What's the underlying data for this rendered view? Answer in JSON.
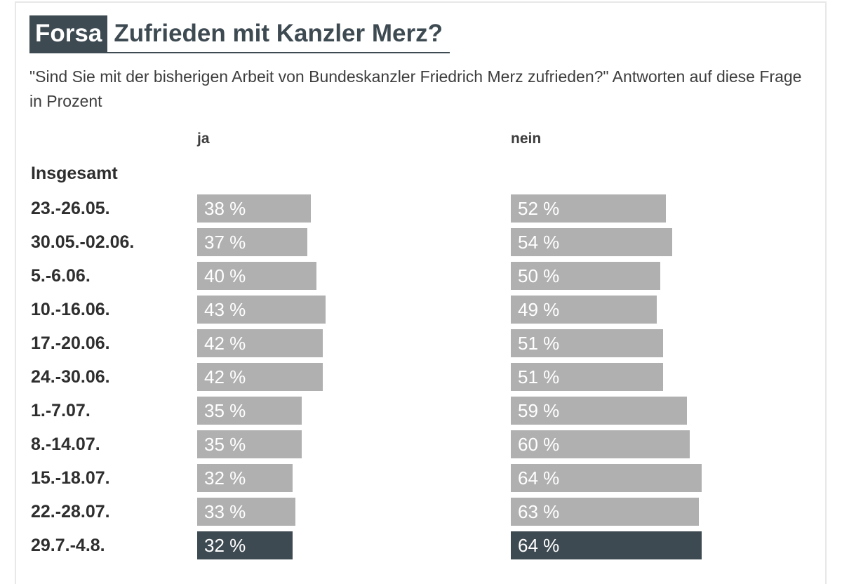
{
  "header": {
    "badge": "Forsa",
    "title": "Zufrieden mit Kanzler Merz?"
  },
  "subtitle": "\"Sind Sie mit der bisherigen Arbeit von Bundeskanzler Friedrich Merz zufrieden?\" Antworten auf diese Frage in Prozent",
  "colors": {
    "bar": "#b0b0b0",
    "bar_highlight": "#3e4a52",
    "accent": "#3e4a52"
  },
  "chart_data": {
    "type": "bar",
    "title": "Zufrieden mit Kanzler Merz?",
    "group_label": "Insgesamt",
    "categories": [
      "23.-26.05.",
      "30.05.-02.06.",
      "5.-6.06.",
      "10.-16.06.",
      "17.-20.06.",
      "24.-30.06.",
      "1.-7.07.",
      "8.-14.07.",
      "15.-18.07.",
      "22.-28.07.",
      "29.7.-4.8."
    ],
    "series": [
      {
        "name": "ja",
        "values": [
          38,
          37,
          40,
          43,
          42,
          42,
          35,
          35,
          32,
          33,
          32
        ]
      },
      {
        "name": "nein",
        "values": [
          52,
          54,
          50,
          49,
          51,
          51,
          59,
          60,
          64,
          63,
          64
        ]
      }
    ],
    "value_suffix": " %",
    "highlight_index": 10,
    "xlabel": "",
    "ylabel": ""
  }
}
